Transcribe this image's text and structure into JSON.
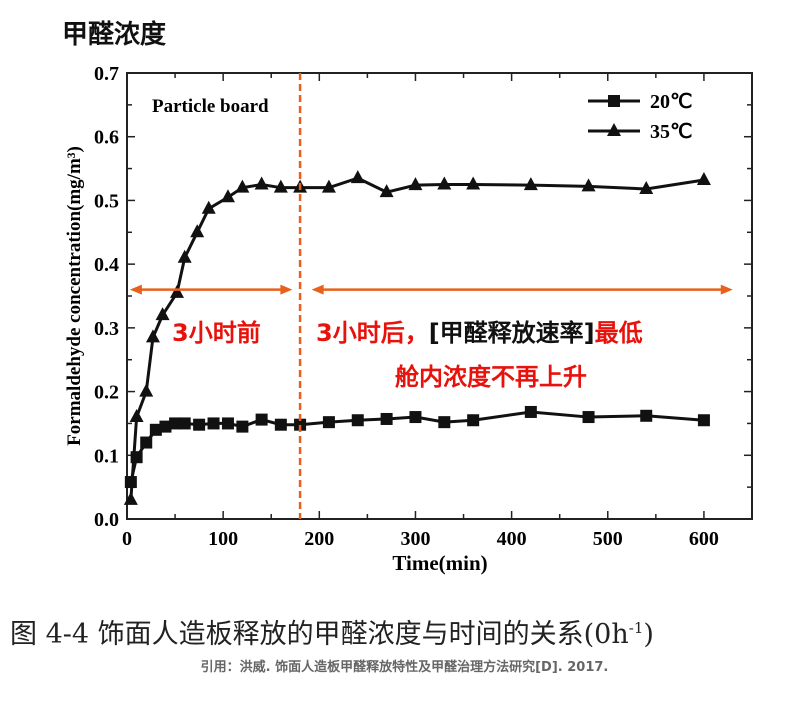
{
  "page_title": "甲醛浓度",
  "caption": "图 4-4  饰面人造板释放的甲醛浓度与时间的关系(0h",
  "caption_sup": "-1",
  "caption_end": ")",
  "citation": "引用：洪威. 饰面人造板甲醛释放特性及甲醛治理方法研究[D]. 2017.",
  "chart_data": {
    "type": "line",
    "panel_label": "Particle board",
    "xlabel": "Time(min)",
    "ylabel": "Formaldehyde concentration(mg/m³)",
    "xlim": [
      0,
      650
    ],
    "ylim": [
      0,
      0.7
    ],
    "xticks": [
      "0",
      "100",
      "200",
      "300",
      "400",
      "500",
      "600"
    ],
    "yticks": [
      "0.0",
      "0.1",
      "0.2",
      "0.3",
      "0.4",
      "0.5",
      "0.6",
      "0.7"
    ],
    "legend_position": "top-right",
    "series": [
      {
        "name": "20℃",
        "marker": "square",
        "x": [
          4,
          10,
          20,
          30,
          40,
          50,
          60,
          75,
          90,
          105,
          120,
          140,
          160,
          180,
          210,
          240,
          270,
          300,
          330,
          360,
          420,
          480,
          540,
          600
        ],
        "y": [
          0.058,
          0.097,
          0.12,
          0.14,
          0.145,
          0.15,
          0.15,
          0.148,
          0.15,
          0.15,
          0.145,
          0.156,
          0.148,
          0.148,
          0.152,
          0.155,
          0.157,
          0.16,
          0.152,
          0.155,
          0.168,
          0.16,
          0.162,
          0.155
        ]
      },
      {
        "name": "35℃",
        "marker": "triangle",
        "x": [
          4,
          10,
          20,
          27,
          37,
          52,
          60,
          73,
          85,
          105,
          120,
          140,
          160,
          180,
          210,
          240,
          270,
          300,
          330,
          360,
          420,
          480,
          540,
          600
        ],
        "y": [
          0.03,
          0.16,
          0.2,
          0.285,
          0.32,
          0.355,
          0.41,
          0.45,
          0.487,
          0.505,
          0.52,
          0.525,
          0.52,
          0.52,
          0.52,
          0.535,
          0.513,
          0.524,
          0.525,
          0.525,
          0.524,
          0.522,
          0.518,
          0.532
        ]
      }
    ],
    "annotations": {
      "divider_x": 180,
      "arrow_y": 0.36,
      "left_arrow_x": [
        3,
        172
      ],
      "right_arrow_x": [
        192,
        630
      ],
      "left_label": "3小时前",
      "right_label_part1": "3小时后，",
      "right_label_part2": "[甲醛释放速率]",
      "right_label_part3": "最低",
      "right_label_line2": "舱内浓度不再上升"
    },
    "colors": {
      "annotation": "#e8601c",
      "annotation_text": "#e8120c",
      "series": "#111111"
    }
  }
}
